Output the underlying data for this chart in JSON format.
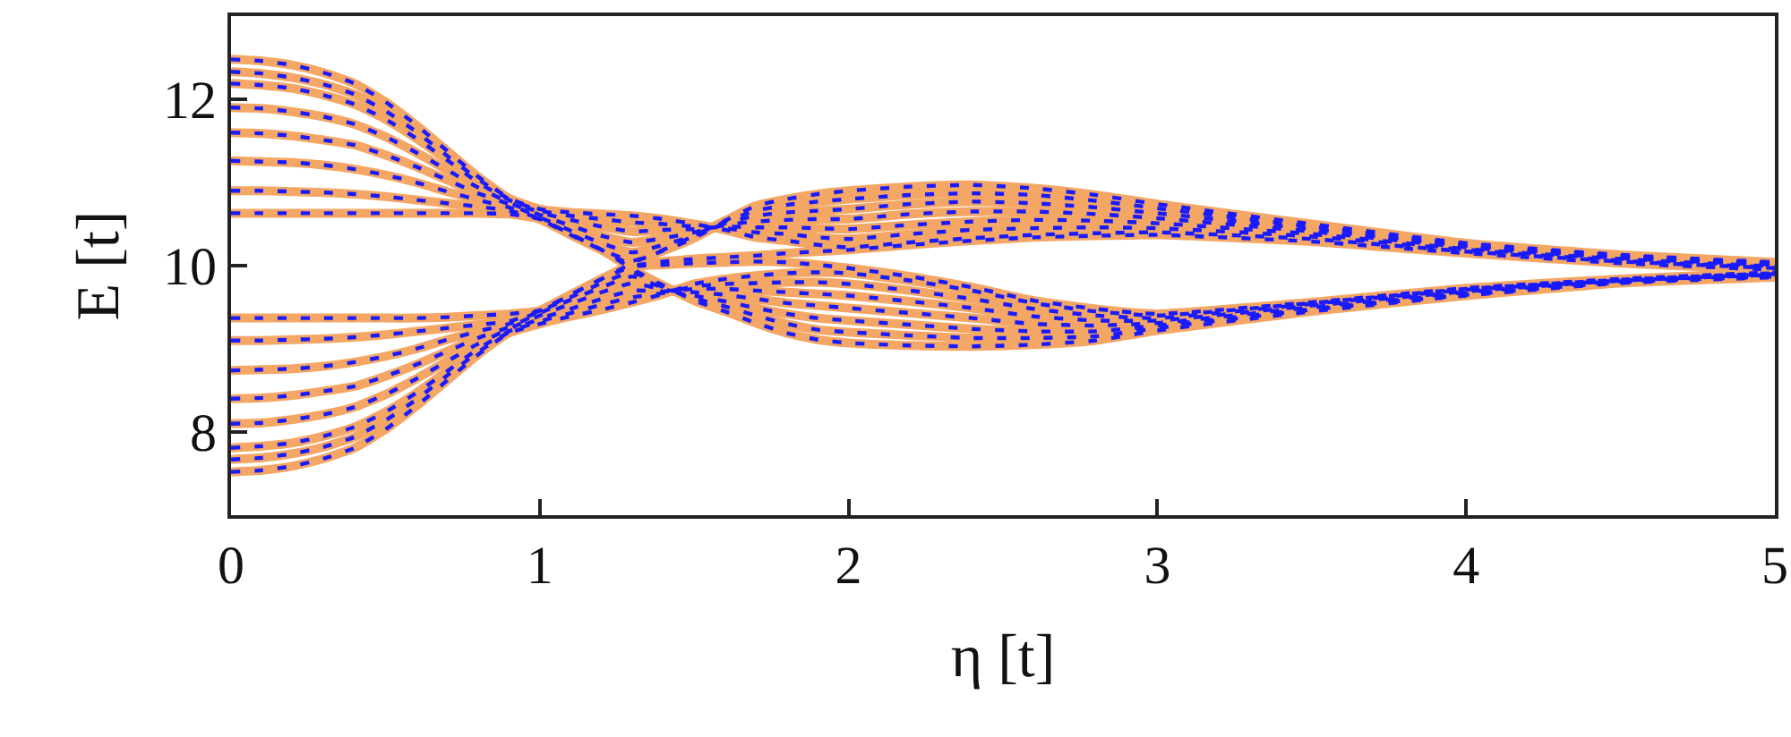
{
  "chart_data": {
    "type": "line",
    "xlabel": "η [t]",
    "ylabel": "E [t]",
    "x": [
      0,
      0.1,
      0.2,
      0.3,
      0.4,
      0.5,
      0.6,
      0.7,
      0.8,
      0.9,
      1,
      1.1,
      1.2,
      1.3,
      1.4,
      1.5,
      1.6,
      1.7,
      1.8,
      1.9,
      2,
      2.2,
      2.4,
      2.6,
      2.8,
      3,
      3.5,
      4,
      4.5,
      5
    ],
    "xlim": [
      0,
      5
    ],
    "xticks": [
      0,
      1,
      2,
      3,
      4,
      5
    ],
    "ylim": [
      7,
      13
    ],
    "yticks": [
      8,
      10,
      12
    ],
    "grid": false,
    "series": [
      {
        "color": "#f4a765",
        "line_style": "solid",
        "values": [
          12.48,
          12.46,
          12.41,
          12.32,
          12.19,
          11.97,
          11.69,
          11.38,
          11.07,
          10.81,
          10.68,
          10.64,
          10.62,
          10.6,
          10.56,
          10.5,
          10.43,
          10.34,
          10.3,
          10.25,
          10.22,
          10.28,
          10.33,
          10.37,
          10.39,
          10.4,
          10.32,
          10.17,
          10.05,
          9.97
        ]
      },
      {
        "color": "#f4a765",
        "line_style": "solid",
        "values": [
          12.33,
          12.31,
          12.26,
          12.18,
          12.06,
          11.86,
          11.61,
          11.32,
          11.04,
          10.8,
          10.66,
          10.6,
          10.56,
          10.52,
          10.5,
          10.47,
          10.45,
          10.4,
          10.38,
          10.34,
          10.32,
          10.38,
          10.43,
          10.45,
          10.46,
          10.45,
          10.35,
          10.19,
          10.06,
          9.98
        ]
      },
      {
        "color": "#f4a765",
        "line_style": "solid",
        "values": [
          12.19,
          12.17,
          12.13,
          12.05,
          11.94,
          11.76,
          11.53,
          11.27,
          11.0,
          10.79,
          10.64,
          10.55,
          10.47,
          10.41,
          10.43,
          10.44,
          10.47,
          10.46,
          10.46,
          10.45,
          10.44,
          10.49,
          10.53,
          10.55,
          10.54,
          10.51,
          10.38,
          10.2,
          10.08,
          9.99
        ]
      },
      {
        "color": "#f4a765",
        "line_style": "solid",
        "values": [
          11.9,
          11.89,
          11.85,
          11.79,
          11.7,
          11.55,
          11.36,
          11.15,
          10.94,
          10.76,
          10.61,
          10.48,
          10.36,
          10.28,
          10.33,
          10.4,
          10.49,
          10.53,
          10.55,
          10.56,
          10.56,
          10.62,
          10.65,
          10.65,
          10.62,
          10.57,
          10.41,
          10.22,
          10.09,
          10.01
        ]
      },
      {
        "color": "#f4a765",
        "line_style": "solid",
        "values": [
          11.6,
          11.59,
          11.56,
          11.51,
          11.45,
          11.33,
          11.19,
          11.03,
          10.87,
          10.74,
          10.58,
          10.42,
          10.27,
          10.16,
          10.25,
          10.36,
          10.51,
          10.6,
          10.64,
          10.66,
          10.68,
          10.74,
          10.77,
          10.75,
          10.7,
          10.63,
          10.44,
          10.24,
          10.1,
          10.02
        ]
      },
      {
        "color": "#f4a765",
        "line_style": "solid",
        "values": [
          11.26,
          11.25,
          11.24,
          11.21,
          11.16,
          11.09,
          11.0,
          10.89,
          10.79,
          10.7,
          10.56,
          10.37,
          10.19,
          10.06,
          10.18,
          10.33,
          10.53,
          10.66,
          10.73,
          10.77,
          10.8,
          10.85,
          10.87,
          10.85,
          10.78,
          10.69,
          10.47,
          10.26,
          10.12,
          10.03
        ]
      },
      {
        "color": "#f4a765",
        "line_style": "solid",
        "values": [
          10.9,
          10.9,
          10.89,
          10.88,
          10.86,
          10.83,
          10.79,
          10.75,
          10.71,
          10.66,
          10.56,
          10.38,
          10.19,
          10.01,
          10.05,
          10.08,
          10.1,
          10.12,
          10.15,
          10.17,
          10.19,
          10.25,
          10.3,
          10.34,
          10.36,
          10.37,
          10.29,
          10.15,
          10.03,
          9.95
        ]
      },
      {
        "color": "#f4a765",
        "line_style": "solid",
        "values": [
          10.63,
          10.63,
          10.63,
          10.63,
          10.63,
          10.63,
          10.63,
          10.63,
          10.63,
          10.62,
          10.56,
          10.38,
          10.19,
          9.96,
          9.76,
          9.58,
          9.45,
          9.31,
          9.19,
          9.11,
          9.07,
          9.04,
          9.03,
          9.05,
          9.1,
          9.22,
          9.45,
          9.64,
          9.79,
          9.86
        ]
      },
      {
        "color": "#f4a765",
        "line_style": "solid",
        "values": [
          9.37,
          9.37,
          9.37,
          9.37,
          9.37,
          9.37,
          9.37,
          9.38,
          9.4,
          9.42,
          9.46,
          9.65,
          9.84,
          10.03,
          10.19,
          10.36,
          10.54,
          10.72,
          10.8,
          10.86,
          10.9,
          10.95,
          10.97,
          10.93,
          10.85,
          10.74,
          10.5,
          10.27,
          10.13,
          10.04
        ]
      },
      {
        "color": "#f4a765",
        "line_style": "solid",
        "values": [
          9.1,
          9.1,
          9.11,
          9.12,
          9.14,
          9.17,
          9.21,
          9.25,
          9.29,
          9.33,
          9.46,
          9.65,
          9.84,
          9.99,
          10.01,
          10.03,
          10.04,
          10.05,
          10.04,
          10.01,
          9.97,
          9.87,
          9.74,
          9.58,
          9.48,
          9.42,
          9.56,
          9.73,
          9.84,
          9.92
        ]
      },
      {
        "color": "#f4a765",
        "line_style": "solid",
        "values": [
          8.74,
          8.75,
          8.76,
          8.79,
          8.84,
          8.91,
          9.0,
          9.11,
          9.21,
          9.3,
          9.45,
          9.62,
          9.79,
          9.92,
          9.74,
          9.61,
          9.51,
          9.4,
          9.3,
          9.23,
          9.2,
          9.16,
          9.13,
          9.13,
          9.15,
          9.25,
          9.47,
          9.65,
          9.8,
          9.87
        ]
      },
      {
        "color": "#f4a765",
        "line_style": "solid",
        "values": [
          8.4,
          8.41,
          8.44,
          8.49,
          8.55,
          8.67,
          8.81,
          8.97,
          9.13,
          9.26,
          9.43,
          9.59,
          9.74,
          9.87,
          9.73,
          9.64,
          9.57,
          9.49,
          9.42,
          9.37,
          9.34,
          9.29,
          9.24,
          9.21,
          9.21,
          9.28,
          9.48,
          9.67,
          9.8,
          9.88
        ]
      },
      {
        "color": "#f4a765",
        "line_style": "solid",
        "values": [
          8.1,
          8.11,
          8.15,
          8.21,
          8.3,
          8.45,
          8.64,
          8.85,
          9.06,
          9.24,
          9.4,
          9.54,
          9.68,
          9.79,
          9.71,
          9.68,
          9.65,
          9.6,
          9.55,
          9.52,
          9.49,
          9.43,
          9.37,
          9.3,
          9.28,
          9.31,
          9.5,
          9.68,
          9.81,
          9.89
        ]
      },
      {
        "color": "#f4a765",
        "line_style": "solid",
        "values": [
          7.81,
          7.83,
          7.87,
          7.95,
          8.06,
          8.24,
          8.47,
          8.73,
          9.0,
          9.21,
          9.36,
          9.48,
          9.6,
          9.7,
          9.69,
          9.72,
          9.72,
          9.7,
          9.68,
          9.66,
          9.64,
          9.57,
          9.49,
          9.39,
          9.34,
          9.34,
          9.52,
          9.69,
          9.82,
          9.89
        ]
      },
      {
        "color": "#f4a765",
        "line_style": "solid",
        "values": [
          7.67,
          7.69,
          7.74,
          7.82,
          7.94,
          8.14,
          8.39,
          8.68,
          8.96,
          9.2,
          9.33,
          9.43,
          9.53,
          9.62,
          9.67,
          9.75,
          9.78,
          9.79,
          9.8,
          9.8,
          9.78,
          9.7,
          9.6,
          9.48,
          9.4,
          9.37,
          9.54,
          9.71,
          9.82,
          9.9
        ]
      },
      {
        "color": "#f4a765",
        "line_style": "solid",
        "values": [
          7.52,
          7.54,
          7.59,
          7.68,
          7.81,
          8.03,
          8.31,
          8.62,
          8.93,
          9.19,
          9.3,
          9.39,
          9.47,
          9.56,
          9.66,
          9.78,
          9.84,
          9.88,
          9.91,
          9.92,
          9.91,
          9.82,
          9.7,
          9.55,
          9.45,
          9.4,
          9.55,
          9.72,
          9.83,
          9.91
        ]
      },
      {
        "color": "#1a1aff",
        "line_style": "dashed",
        "values": [
          12.48,
          12.46,
          12.41,
          12.32,
          12.19,
          11.97,
          11.69,
          11.38,
          11.07,
          10.81,
          10.68,
          10.64,
          10.62,
          10.6,
          10.56,
          10.5,
          10.43,
          10.34,
          10.3,
          10.25,
          10.22,
          10.28,
          10.33,
          10.37,
          10.39,
          10.4,
          10.32,
          10.17,
          10.05,
          9.97
        ]
      },
      {
        "color": "#1a1aff",
        "line_style": "dashed",
        "values": [
          12.33,
          12.31,
          12.26,
          12.18,
          12.06,
          11.86,
          11.61,
          11.32,
          11.04,
          10.8,
          10.66,
          10.6,
          10.56,
          10.52,
          10.5,
          10.47,
          10.45,
          10.4,
          10.38,
          10.34,
          10.32,
          10.38,
          10.43,
          10.45,
          10.46,
          10.45,
          10.35,
          10.19,
          10.06,
          9.98
        ]
      },
      {
        "color": "#1a1aff",
        "line_style": "dashed",
        "values": [
          12.19,
          12.17,
          12.13,
          12.05,
          11.94,
          11.76,
          11.53,
          11.27,
          11.0,
          10.79,
          10.64,
          10.55,
          10.47,
          10.41,
          10.43,
          10.44,
          10.47,
          10.46,
          10.46,
          10.45,
          10.44,
          10.49,
          10.53,
          10.55,
          10.54,
          10.51,
          10.38,
          10.2,
          10.08,
          9.99
        ]
      },
      {
        "color": "#1a1aff",
        "line_style": "dashed",
        "values": [
          11.9,
          11.89,
          11.85,
          11.79,
          11.7,
          11.55,
          11.36,
          11.15,
          10.94,
          10.76,
          10.61,
          10.48,
          10.36,
          10.28,
          10.33,
          10.4,
          10.49,
          10.53,
          10.55,
          10.56,
          10.56,
          10.62,
          10.65,
          10.65,
          10.62,
          10.57,
          10.41,
          10.22,
          10.09,
          10.01
        ]
      },
      {
        "color": "#1a1aff",
        "line_style": "dashed",
        "values": [
          11.6,
          11.59,
          11.56,
          11.51,
          11.45,
          11.33,
          11.19,
          11.03,
          10.87,
          10.74,
          10.58,
          10.42,
          10.27,
          10.16,
          10.25,
          10.36,
          10.51,
          10.6,
          10.64,
          10.66,
          10.68,
          10.74,
          10.77,
          10.75,
          10.7,
          10.63,
          10.44,
          10.24,
          10.1,
          10.02
        ]
      },
      {
        "color": "#1a1aff",
        "line_style": "dashed",
        "values": [
          11.26,
          11.25,
          11.24,
          11.21,
          11.16,
          11.09,
          11.0,
          10.89,
          10.79,
          10.7,
          10.56,
          10.37,
          10.19,
          10.06,
          10.18,
          10.33,
          10.53,
          10.66,
          10.73,
          10.77,
          10.8,
          10.85,
          10.87,
          10.85,
          10.78,
          10.69,
          10.47,
          10.26,
          10.12,
          10.03
        ]
      },
      {
        "color": "#1a1aff",
        "line_style": "dashed",
        "values": [
          10.9,
          10.9,
          10.89,
          10.88,
          10.86,
          10.83,
          10.79,
          10.75,
          10.71,
          10.66,
          10.56,
          10.38,
          10.19,
          10.01,
          10.05,
          10.08,
          10.1,
          10.12,
          10.15,
          10.17,
          10.19,
          10.25,
          10.3,
          10.34,
          10.36,
          10.37,
          10.29,
          10.15,
          10.03,
          9.95
        ]
      },
      {
        "color": "#1a1aff",
        "line_style": "dashed",
        "values": [
          10.63,
          10.63,
          10.63,
          10.63,
          10.63,
          10.63,
          10.63,
          10.63,
          10.63,
          10.62,
          10.56,
          10.38,
          10.19,
          9.96,
          9.76,
          9.58,
          9.45,
          9.31,
          9.19,
          9.11,
          9.07,
          9.04,
          9.03,
          9.05,
          9.1,
          9.22,
          9.45,
          9.64,
          9.79,
          9.86
        ]
      },
      {
        "color": "#1a1aff",
        "line_style": "dashed",
        "values": [
          9.37,
          9.37,
          9.37,
          9.37,
          9.37,
          9.37,
          9.37,
          9.38,
          9.4,
          9.42,
          9.46,
          9.65,
          9.84,
          10.03,
          10.19,
          10.36,
          10.54,
          10.72,
          10.8,
          10.86,
          10.9,
          10.95,
          10.97,
          10.93,
          10.85,
          10.74,
          10.5,
          10.27,
          10.13,
          10.04
        ]
      },
      {
        "color": "#1a1aff",
        "line_style": "dashed",
        "values": [
          9.1,
          9.1,
          9.11,
          9.12,
          9.14,
          9.17,
          9.21,
          9.25,
          9.29,
          9.33,
          9.46,
          9.65,
          9.84,
          9.99,
          10.01,
          10.03,
          10.04,
          10.05,
          10.04,
          10.01,
          9.97,
          9.87,
          9.74,
          9.58,
          9.48,
          9.42,
          9.56,
          9.73,
          9.84,
          9.92
        ]
      },
      {
        "color": "#1a1aff",
        "line_style": "dashed",
        "values": [
          8.74,
          8.75,
          8.76,
          8.79,
          8.84,
          8.91,
          9.0,
          9.11,
          9.21,
          9.3,
          9.45,
          9.62,
          9.79,
          9.92,
          9.74,
          9.61,
          9.51,
          9.4,
          9.3,
          9.23,
          9.2,
          9.16,
          9.13,
          9.13,
          9.15,
          9.25,
          9.47,
          9.65,
          9.8,
          9.87
        ]
      },
      {
        "color": "#1a1aff",
        "line_style": "dashed",
        "values": [
          8.4,
          8.41,
          8.44,
          8.49,
          8.55,
          8.67,
          8.81,
          8.97,
          9.13,
          9.26,
          9.43,
          9.59,
          9.74,
          9.87,
          9.73,
          9.64,
          9.57,
          9.49,
          9.42,
          9.37,
          9.34,
          9.29,
          9.24,
          9.21,
          9.21,
          9.28,
          9.48,
          9.67,
          9.8,
          9.88
        ]
      },
      {
        "color": "#1a1aff",
        "line_style": "dashed",
        "values": [
          8.1,
          8.11,
          8.15,
          8.21,
          8.3,
          8.45,
          8.64,
          8.85,
          9.06,
          9.24,
          9.4,
          9.54,
          9.68,
          9.79,
          9.71,
          9.68,
          9.65,
          9.6,
          9.55,
          9.52,
          9.49,
          9.43,
          9.37,
          9.3,
          9.28,
          9.31,
          9.5,
          9.68,
          9.81,
          9.89
        ]
      },
      {
        "color": "#1a1aff",
        "line_style": "dashed",
        "values": [
          7.81,
          7.83,
          7.87,
          7.95,
          8.06,
          8.24,
          8.47,
          8.73,
          9.0,
          9.21,
          9.36,
          9.48,
          9.6,
          9.7,
          9.69,
          9.72,
          9.72,
          9.7,
          9.68,
          9.66,
          9.64,
          9.57,
          9.49,
          9.39,
          9.34,
          9.34,
          9.52,
          9.69,
          9.82,
          9.89
        ]
      },
      {
        "color": "#1a1aff",
        "line_style": "dashed",
        "values": [
          7.67,
          7.69,
          7.74,
          7.82,
          7.94,
          8.14,
          8.39,
          8.68,
          8.96,
          9.2,
          9.33,
          9.43,
          9.53,
          9.62,
          9.67,
          9.75,
          9.78,
          9.79,
          9.8,
          9.8,
          9.78,
          9.7,
          9.6,
          9.48,
          9.4,
          9.37,
          9.54,
          9.71,
          9.82,
          9.9
        ]
      },
      {
        "color": "#1a1aff",
        "line_style": "dashed",
        "values": [
          7.52,
          7.54,
          7.59,
          7.68,
          7.81,
          8.03,
          8.31,
          8.62,
          8.93,
          9.19,
          9.3,
          9.39,
          9.47,
          9.56,
          9.66,
          9.78,
          9.84,
          9.88,
          9.91,
          9.92,
          9.91,
          9.82,
          9.7,
          9.55,
          9.45,
          9.4,
          9.55,
          9.72,
          9.83,
          9.91
        ]
      }
    ]
  }
}
